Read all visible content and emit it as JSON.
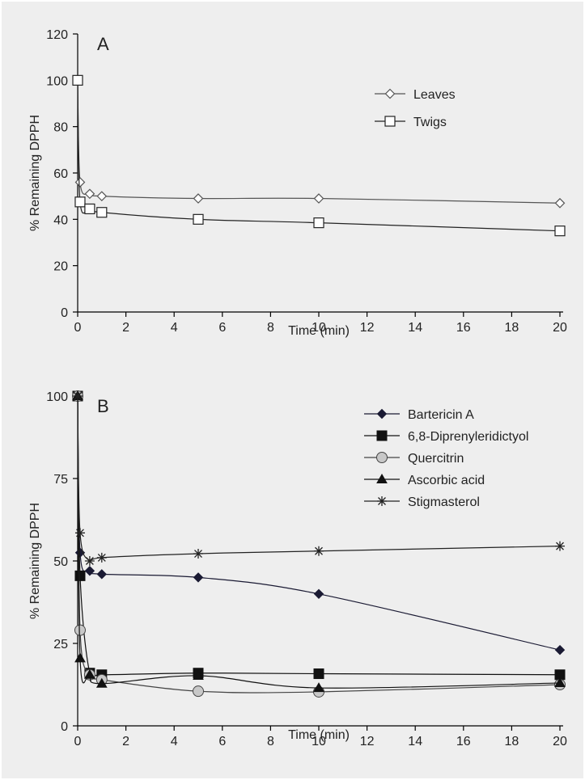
{
  "chart_data": [
    {
      "type": "line",
      "panel_label": "A",
      "xlabel": "Time (min)",
      "ylabel": "% Remaining DPPH",
      "xlim": [
        0,
        20
      ],
      "ylim": [
        0,
        120
      ],
      "xticks": [
        0,
        2,
        4,
        6,
        8,
        10,
        12,
        14,
        16,
        18,
        20
      ],
      "yticks": [
        0,
        20,
        40,
        60,
        80,
        100,
        120
      ],
      "grid": false,
      "legend_position": "upper-right",
      "series": [
        {
          "name": "Leaves",
          "marker": "diamond-open",
          "color": "#555555",
          "x": [
            0,
            0.1,
            0.5,
            1,
            5,
            10,
            20
          ],
          "y": [
            100,
            56,
            51,
            50,
            49,
            49,
            47
          ]
        },
        {
          "name": "Twigs",
          "marker": "square-open",
          "color": "#222222",
          "x": [
            0,
            0.1,
            0.5,
            1,
            5,
            10,
            20
          ],
          "y": [
            100,
            47.5,
            44.5,
            43,
            40,
            38.5,
            35
          ]
        }
      ]
    },
    {
      "type": "line",
      "panel_label": "B",
      "xlabel": "Time (min)",
      "ylabel": "% Remaining DPPH",
      "xlim": [
        0,
        20
      ],
      "ylim": [
        0,
        100
      ],
      "xticks": [
        0,
        2,
        4,
        6,
        8,
        10,
        12,
        14,
        16,
        18,
        20
      ],
      "yticks": [
        0,
        25,
        50,
        75,
        100
      ],
      "grid": false,
      "legend_position": "upper-right",
      "series": [
        {
          "name": "Bartericin A",
          "marker": "diamond-filled",
          "color": "#1a1a33",
          "x": [
            0,
            0.1,
            0.5,
            1,
            5,
            10,
            20
          ],
          "y": [
            100,
            52.5,
            47,
            46,
            45,
            40,
            23
          ]
        },
        {
          "name": "6,8-Diprenyleridictyol",
          "marker": "square-filled",
          "color": "#111111",
          "x": [
            0,
            0.1,
            0.5,
            1,
            5,
            10,
            20
          ],
          "y": [
            100,
            45.5,
            16,
            15.5,
            16,
            15.8,
            15.5
          ]
        },
        {
          "name": "Quercitrin",
          "marker": "circle-gray",
          "color": "#444444",
          "x": [
            0,
            0.1,
            0.5,
            1,
            5,
            10,
            20
          ],
          "y": [
            100,
            29,
            15.5,
            14,
            10.5,
            10.3,
            12.5
          ]
        },
        {
          "name": "Ascorbic acid",
          "marker": "triangle-filled",
          "color": "#111111",
          "x": [
            0,
            0.1,
            0.5,
            1,
            5,
            10,
            20
          ],
          "y": [
            100,
            20.5,
            15.5,
            12.8,
            15.2,
            11.5,
            13
          ]
        },
        {
          "name": "Stigmasterol",
          "marker": "asterisk",
          "color": "#222222",
          "x": [
            0,
            0.1,
            0.5,
            1,
            5,
            10,
            20
          ],
          "y": [
            100,
            58.5,
            50,
            51,
            52.2,
            53,
            54.5
          ]
        }
      ]
    }
  ]
}
